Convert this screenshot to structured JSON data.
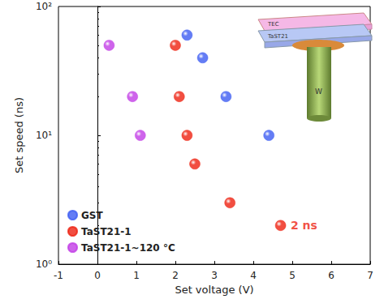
{
  "chart_data": {
    "type": "scatter",
    "x_label": "Set voltage (V)",
    "y_label": "Set speed (ns)",
    "xlim": [
      -1,
      7
    ],
    "xticks": [
      -1,
      0,
      1,
      2,
      3,
      4,
      5,
      6,
      7
    ],
    "ylim": [
      1,
      100
    ],
    "yticks": [
      {
        "value": 1,
        "label": "10⁰"
      },
      {
        "value": 10,
        "label": "10¹"
      },
      {
        "value": 100,
        "label": "10²"
      }
    ],
    "log": "y",
    "grid": false,
    "legend": "lower left",
    "marker": "circle",
    "series": [
      {
        "name": "GST",
        "color": "#3d5cf2",
        "x": [
          2.3,
          2.7,
          3.3,
          4.4
        ],
        "values": [
          60,
          40,
          20,
          10
        ]
      },
      {
        "name": "TaST21-1",
        "color": "#ee2211",
        "x": [
          2.0,
          2.1,
          2.3,
          2.5,
          3.4,
          4.7
        ],
        "values": [
          50,
          20,
          10,
          6,
          3,
          2
        ]
      },
      {
        "name": "TaST21-1~120 °C",
        "color": "#c23de6",
        "x": [
          0.3,
          0.9,
          1.1
        ],
        "values": [
          50,
          20,
          10
        ]
      }
    ],
    "annotations": [
      {
        "text": "2 ns",
        "x": 5.3,
        "y": 2,
        "color": "#ee2211"
      }
    ],
    "inset_labels": [
      "TEC",
      "TaST21",
      "W"
    ]
  }
}
